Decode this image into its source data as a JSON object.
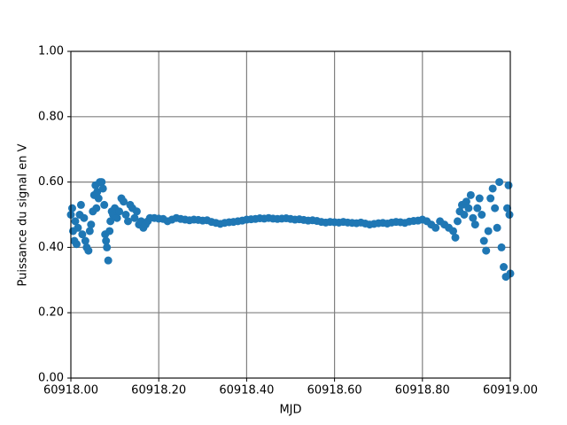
{
  "chart_data": {
    "type": "scatter",
    "x_label": "MJD",
    "y_label": "Puissance du signal en V",
    "color": "#1f77b4",
    "grid": true,
    "xlim": [
      60918.0,
      60919.0
    ],
    "ylim": [
      0,
      1
    ],
    "xticks": [
      {
        "value": 60918.0,
        "label": "60918.00"
      },
      {
        "value": 60918.2,
        "label": "60918.20"
      },
      {
        "value": 60918.4,
        "label": "60918.40"
      },
      {
        "value": 60918.6,
        "label": "60918.60"
      },
      {
        "value": 60918.8,
        "label": "60918.80"
      },
      {
        "value": 60919.0,
        "label": "60919.00"
      }
    ],
    "yticks": [
      {
        "value": 0,
        "label": "0.00"
      },
      {
        "value": 0.2,
        "label": "0.20"
      },
      {
        "value": 0.4,
        "label": "0.40"
      },
      {
        "value": 0.6,
        "label": "0.60"
      },
      {
        "value": 0.8,
        "label": "0.80"
      },
      {
        "value": 1,
        "label": "1.00"
      }
    ],
    "x": [
      60918.0,
      60918.003,
      60918.005,
      60918.008,
      60918.01,
      60918.013,
      60918.016,
      60918.02,
      60918.023,
      60918.026,
      60918.03,
      60918.033,
      60918.036,
      60918.04,
      60918.043,
      60918.046,
      60918.05,
      60918.053,
      60918.056,
      60918.058,
      60918.06,
      60918.063,
      60918.066,
      60918.07,
      60918.073,
      60918.076,
      60918.078,
      60918.08,
      60918.082,
      60918.085,
      60918.088,
      60918.09,
      60918.093,
      60918.096,
      60918.1,
      60918.105,
      60918.11,
      60918.115,
      60918.12,
      60918.125,
      60918.13,
      60918.135,
      60918.14,
      60918.145,
      60918.15,
      60918.155,
      60918.16,
      60918.165,
      60918.17,
      60918.175,
      60918.18,
      60918.19,
      60918.2,
      60918.21,
      60918.22,
      60918.23,
      60918.24,
      60918.25,
      60918.26,
      60918.27,
      60918.28,
      60918.29,
      60918.3,
      60918.31,
      60918.32,
      60918.33,
      60918.34,
      60918.35,
      60918.36,
      60918.37,
      60918.38,
      60918.39,
      60918.4,
      60918.41,
      60918.42,
      60918.43,
      60918.44,
      60918.45,
      60918.46,
      60918.47,
      60918.48,
      60918.49,
      60918.5,
      60918.51,
      60918.52,
      60918.53,
      60918.54,
      60918.55,
      60918.56,
      60918.57,
      60918.58,
      60918.59,
      60918.6,
      60918.61,
      60918.62,
      60918.63,
      60918.64,
      60918.65,
      60918.66,
      60918.67,
      60918.68,
      60918.69,
      60918.7,
      60918.71,
      60918.72,
      60918.73,
      60918.74,
      60918.75,
      60918.76,
      60918.77,
      60918.78,
      60918.79,
      60918.8,
      60918.81,
      60918.82,
      60918.83,
      60918.84,
      60918.85,
      60918.86,
      60918.87,
      60918.875,
      60918.88,
      60918.885,
      60918.89,
      60918.895,
      60918.9,
      60918.905,
      60918.91,
      60918.915,
      60918.92,
      60918.925,
      60918.93,
      60918.935,
      60918.94,
      60918.945,
      60918.95,
      60918.955,
      60918.96,
      60918.965,
      60918.97,
      60918.975,
      60918.98,
      60918.985,
      60918.99,
      60918.993,
      60918.996,
      60918.998,
      60919.0
    ],
    "values": [
      0.5,
      0.52,
      0.45,
      0.42,
      0.48,
      0.41,
      0.46,
      0.5,
      0.53,
      0.44,
      0.49,
      0.42,
      0.4,
      0.39,
      0.45,
      0.47,
      0.51,
      0.56,
      0.59,
      0.52,
      0.57,
      0.55,
      0.6,
      0.6,
      0.58,
      0.53,
      0.44,
      0.42,
      0.4,
      0.36,
      0.45,
      0.48,
      0.51,
      0.5,
      0.52,
      0.49,
      0.51,
      0.55,
      0.54,
      0.5,
      0.48,
      0.53,
      0.52,
      0.49,
      0.51,
      0.47,
      0.48,
      0.46,
      0.47,
      0.48,
      0.49,
      0.49,
      0.488,
      0.487,
      0.48,
      0.485,
      0.49,
      0.487,
      0.485,
      0.483,
      0.485,
      0.484,
      0.482,
      0.483,
      0.478,
      0.475,
      0.472,
      0.475,
      0.477,
      0.478,
      0.48,
      0.482,
      0.485,
      0.486,
      0.487,
      0.489,
      0.488,
      0.49,
      0.488,
      0.487,
      0.488,
      0.489,
      0.487,
      0.485,
      0.486,
      0.484,
      0.482,
      0.483,
      0.481,
      0.478,
      0.476,
      0.478,
      0.477,
      0.476,
      0.478,
      0.476,
      0.475,
      0.474,
      0.476,
      0.473,
      0.47,
      0.472,
      0.474,
      0.475,
      0.473,
      0.476,
      0.478,
      0.477,
      0.475,
      0.479,
      0.481,
      0.482,
      0.485,
      0.48,
      0.47,
      0.46,
      0.48,
      0.47,
      0.46,
      0.45,
      0.43,
      0.48,
      0.51,
      0.53,
      0.5,
      0.54,
      0.52,
      0.56,
      0.49,
      0.47,
      0.52,
      0.55,
      0.5,
      0.42,
      0.39,
      0.45,
      0.55,
      0.58,
      0.52,
      0.46,
      0.6,
      0.4,
      0.34,
      0.31,
      0.52,
      0.59,
      0.5,
      0.32
    ]
  }
}
